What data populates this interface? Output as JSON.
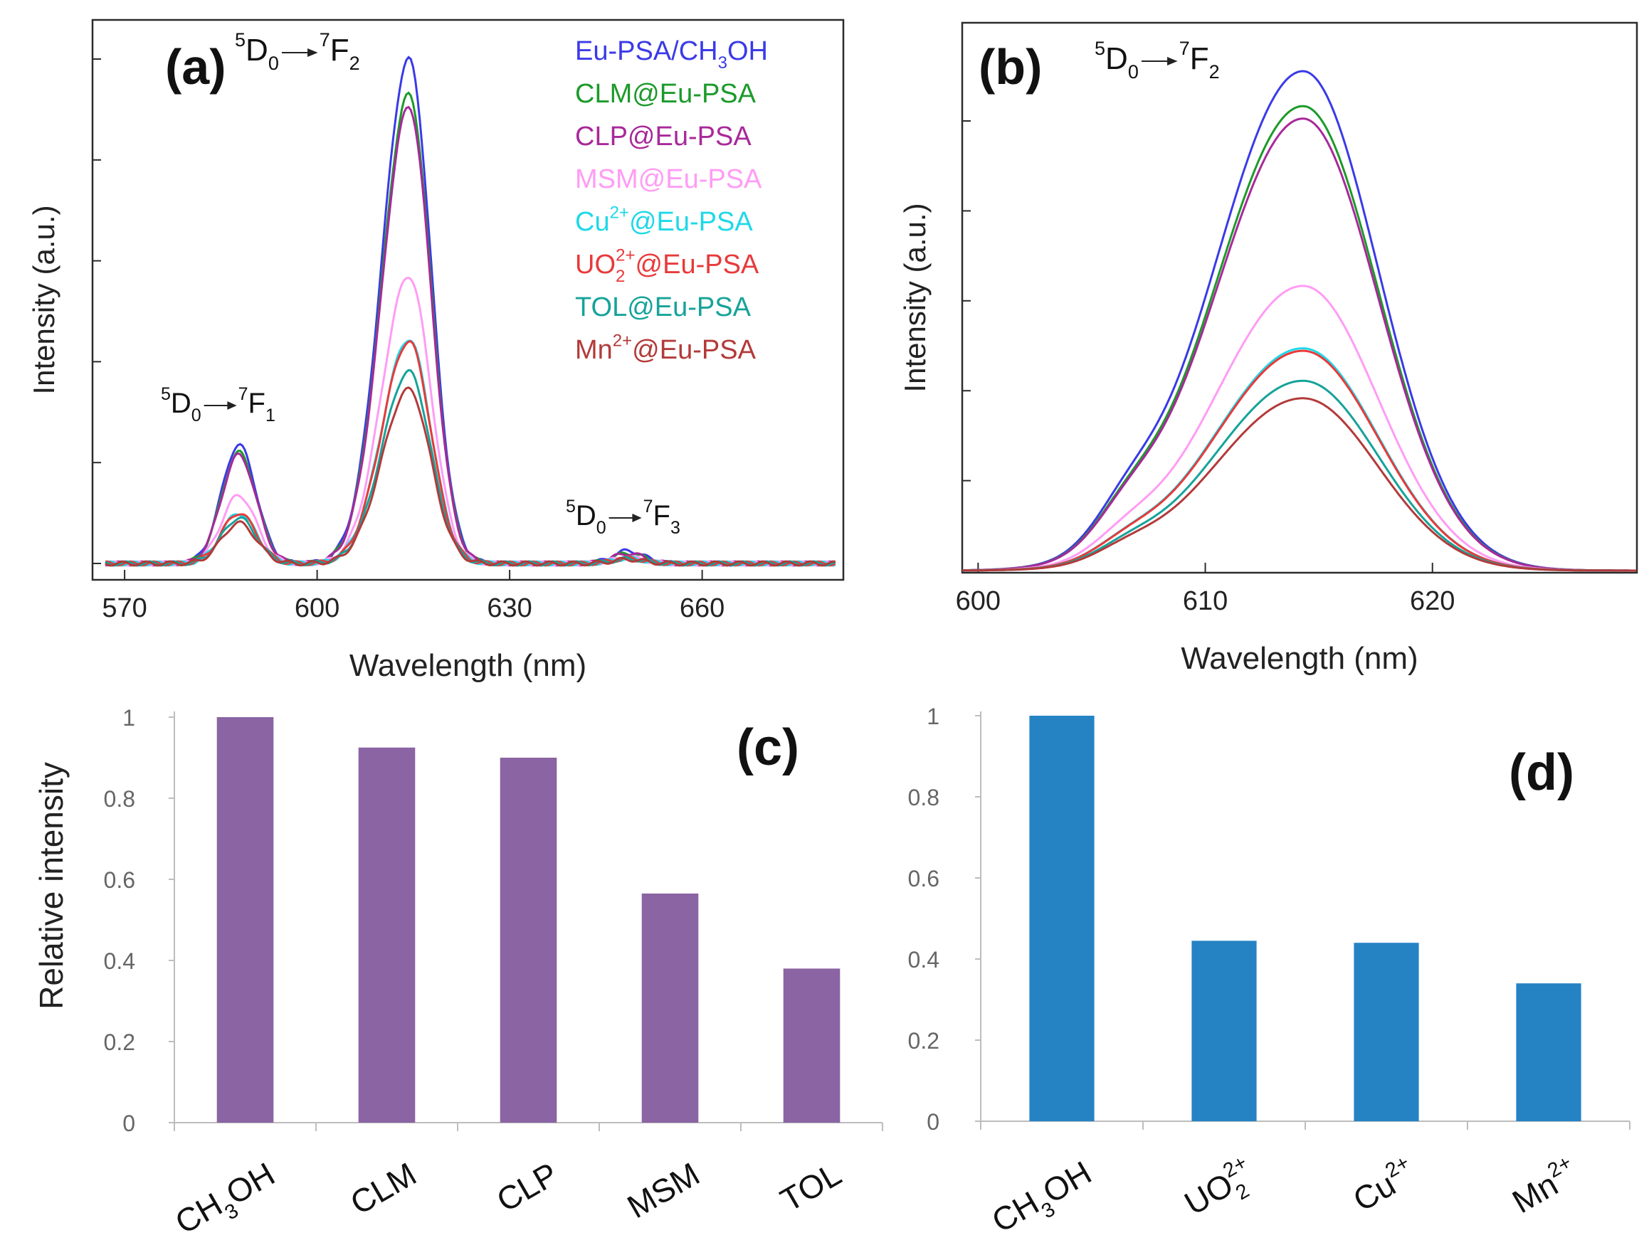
{
  "colors": {
    "axis": "#2b2b2b",
    "bar_c": "#8a64a3",
    "bar_d": "#2583c4",
    "series": [
      "#3a3ae8",
      "#1c9a2a",
      "#a8299a",
      "#ff9cf5",
      "#1fd8e8",
      "#e83a3a",
      "#15a39a",
      "#b33a3a"
    ]
  },
  "chart_data": [
    {
      "panel_label": "(a)",
      "type": "line",
      "xlabel": "Wavelength  (nm)",
      "ylabel": "Intensity (a.u.)",
      "xlim": [
        565,
        682
      ],
      "ylim": [
        0,
        1.07
      ],
      "xticks": [
        "570",
        "600",
        "630",
        "660"
      ],
      "annotations": [
        {
          "sup1": "5",
          "base1": "D",
          "sub1": "0",
          "sup2": "7",
          "base2": "F",
          "sub2": "2"
        },
        {
          "sup1": "5",
          "base1": "D",
          "sub1": "0",
          "sup2": "7",
          "base2": "F",
          "sub2": "1"
        },
        {
          "sup1": "5",
          "base1": "D",
          "sub1": "0",
          "sup2": "7",
          "base2": "F",
          "sub2": "3"
        }
      ],
      "legend": [
        {
          "name": "Eu-PSA/CH3OH",
          "pre": "Eu-PSA/CH",
          "sub": "3",
          "post": "OH"
        },
        {
          "name": "CLM@Eu-PSA",
          "pre": "CLM@Eu-PSA"
        },
        {
          "name": "CLP@Eu-PSA",
          "pre": "CLP@Eu-PSA"
        },
        {
          "name": "MSM@Eu-PSA",
          "pre": "MSM@Eu-PSA"
        },
        {
          "name": "Cu2+@Eu-PSA",
          "pre": "Cu",
          "sup": "2+",
          "post": "@Eu-PSA"
        },
        {
          "name": "UO22+@Eu-PSA",
          "pre": "UO",
          "sub": "2",
          "sup": "2+",
          "post": "@Eu-PSA"
        },
        {
          "name": "TOL@Eu-PSA",
          "pre": "TOL@Eu-PSA"
        },
        {
          "name": "Mn2+@Eu-PSA",
          "pre": "Mn",
          "sup": "2+",
          "post": "@Eu-PSA"
        }
      ],
      "peaks": {
        "F1_nm": 587.8,
        "F2_nm": 614.3,
        "F3_nm": 648.5
      },
      "series": [
        {
          "name": "Eu-PSA/CH3OH",
          "F1": 0.235,
          "F2": 1.0,
          "F3": 0.025
        },
        {
          "name": "CLM@Eu-PSA",
          "F1": 0.22,
          "F2": 0.93,
          "F3": 0.02
        },
        {
          "name": "CLP@Eu-PSA",
          "F1": 0.215,
          "F2": 0.905,
          "F3": 0.02
        },
        {
          "name": "MSM@Eu-PSA",
          "F1": 0.135,
          "F2": 0.57,
          "F3": 0.012
        },
        {
          "name": "Cu2+@Eu-PSA",
          "F1": 0.1,
          "F2": 0.445,
          "F3": 0.01
        },
        {
          "name": "UO22+@Eu-PSA",
          "F1": 0.1,
          "F2": 0.44,
          "F3": 0.01
        },
        {
          "name": "TOL@Eu-PSA",
          "F1": 0.09,
          "F2": 0.38,
          "F3": 0.009
        },
        {
          "name": "Mn2+@Eu-PSA",
          "F1": 0.08,
          "F2": 0.345,
          "F3": 0.008
        }
      ]
    },
    {
      "panel_label": "(b)",
      "type": "line",
      "xlabel": "Wavelength  (nm)",
      "ylabel": "Intensity (a.u.)",
      "xlim": [
        599.3,
        629
      ],
      "ylim": [
        0,
        1.055
      ],
      "xticks": [
        "600",
        "610",
        "620"
      ],
      "annotation": {
        "sup1": "5",
        "base1": "D",
        "sub1": "0",
        "sup2": "7",
        "base2": "F",
        "sub2": "2"
      },
      "peak_nm": 614.3,
      "series": [
        {
          "name": "Eu-PSA/CH3OH",
          "peak": 1.0
        },
        {
          "name": "CLM@Eu-PSA",
          "peak": 0.93
        },
        {
          "name": "CLP@Eu-PSA",
          "peak": 0.905
        },
        {
          "name": "MSM@Eu-PSA",
          "peak": 0.57
        },
        {
          "name": "Cu2+@Eu-PSA",
          "peak": 0.445
        },
        {
          "name": "UO22+@Eu-PSA",
          "peak": 0.44
        },
        {
          "name": "TOL@Eu-PSA",
          "peak": 0.38
        },
        {
          "name": "Mn2+@Eu-PSA",
          "peak": 0.345
        }
      ]
    },
    {
      "panel_label": "(c)",
      "type": "bar",
      "ylabel": "Relative intensity",
      "ylim": [
        0,
        1
      ],
      "yticks": [
        "0",
        "0.2",
        "0.4",
        "0.6",
        "0.8",
        "1"
      ],
      "categories": [
        {
          "pre": "CH",
          "sub": "3",
          "post": "OH"
        },
        {
          "pre": "CLM"
        },
        {
          "pre": "CLP"
        },
        {
          "pre": "MSM"
        },
        {
          "pre": "TOL"
        }
      ],
      "values": [
        1.0,
        0.925,
        0.9,
        0.565,
        0.38
      ]
    },
    {
      "panel_label": "(d)",
      "type": "bar",
      "ylabel": "",
      "ylim": [
        0,
        1
      ],
      "yticks": [
        "0",
        "0.2",
        "0.4",
        "0.6",
        "0.8",
        "1"
      ],
      "categories": [
        {
          "pre": "CH",
          "sub": "3",
          "post": "OH"
        },
        {
          "pre": "UO",
          "sub": "2",
          "sup": "2+"
        },
        {
          "pre": "Cu",
          "sup": "2+"
        },
        {
          "pre": "Mn",
          "sup": "2+"
        }
      ],
      "values": [
        1.0,
        0.445,
        0.44,
        0.34
      ]
    }
  ]
}
